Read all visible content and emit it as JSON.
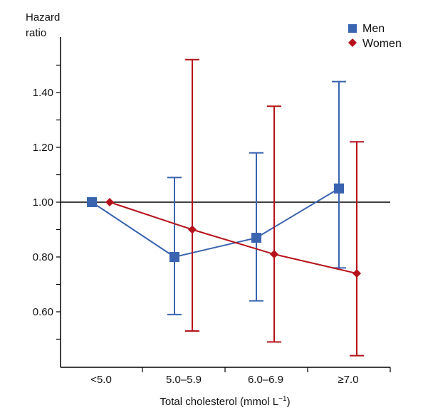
{
  "chart_data": {
    "type": "line",
    "title": "",
    "ylabel_line1": "Hazard",
    "ylabel_line2": "ratio",
    "xlabel_main": "Total cholesterol (mmol L",
    "xlabel_sup": "−1",
    "xlabel_close": ")",
    "categories": [
      "<5.0",
      "5.0–5.9",
      "6.0–6.9",
      "≥7.0"
    ],
    "yticks": [
      {
        "value": 0.6,
        "label": "0.60"
      },
      {
        "value": 0.8,
        "label": "0.80"
      },
      {
        "value": 1.0,
        "label": "1.00"
      },
      {
        "value": 1.2,
        "label": "1.20"
      },
      {
        "value": 1.4,
        "label": "1.40"
      }
    ],
    "ylim": [
      0.4,
      1.6
    ],
    "reference_line": 1.0,
    "legend_position": "top-right",
    "series": [
      {
        "name": "Men",
        "color": "#3a64b0",
        "marker": "square",
        "values": [
          1.0,
          0.8,
          0.87,
          1.05
        ],
        "ci_low": [
          null,
          0.59,
          0.64,
          0.76
        ],
        "ci_high": [
          null,
          1.09,
          1.18,
          1.44
        ]
      },
      {
        "name": "Women",
        "color": "#b5121b",
        "marker": "diamond",
        "values": [
          1.0,
          0.9,
          0.81,
          0.74
        ],
        "ci_low": [
          null,
          0.53,
          0.49,
          0.44
        ],
        "ci_high": [
          null,
          1.52,
          1.35,
          1.22
        ]
      }
    ]
  }
}
